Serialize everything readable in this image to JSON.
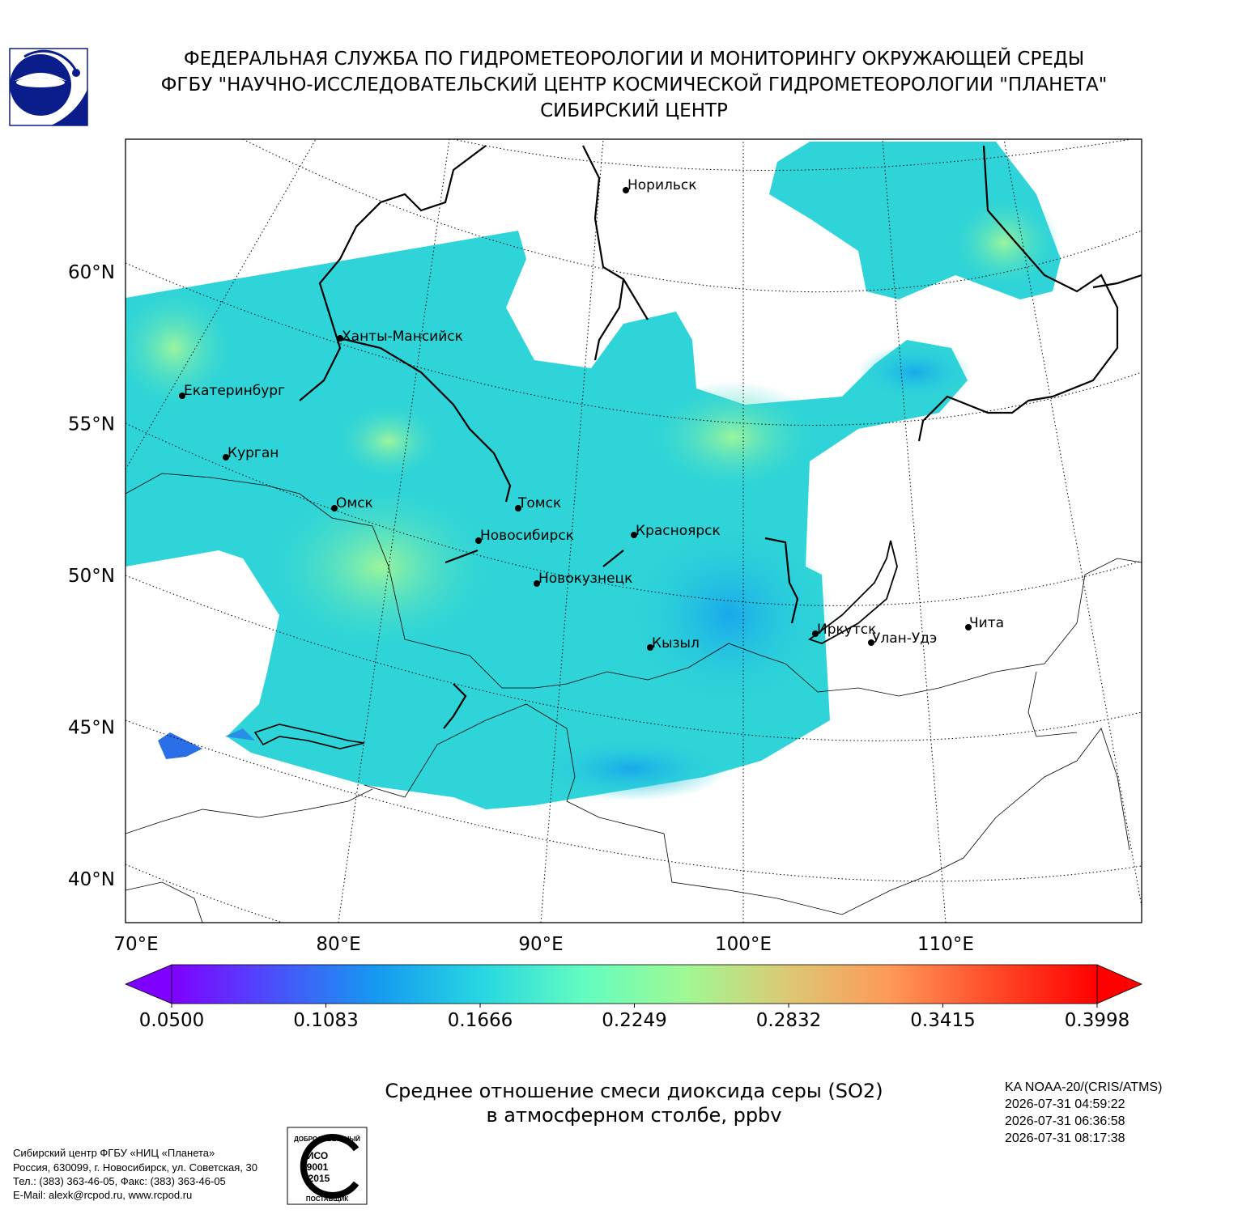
{
  "header": {
    "lines": [
      "ФЕДЕРАЛЬНАЯ СЛУЖБА ПО ГИДРОМЕТЕОРОЛОГИИ И МОНИТОРИНГУ ОКРУЖАЮЩЕЙ СРЕДЫ",
      "ФГБУ \"НАУЧНО-ИССЛЕДОВАТЕЛЬСКИЙ ЦЕНТР КОСМИЧЕСКОЙ ГИДРОМЕТЕОРОЛОГИИ \"ПЛАНЕТА\"",
      "СИБИРСКИЙ ЦЕНТР"
    ]
  },
  "map": {
    "latitude_labels": [
      {
        "value": 60,
        "label": "60°N"
      },
      {
        "value": 55,
        "label": "55°N"
      },
      {
        "value": 50,
        "label": "50°N"
      },
      {
        "value": 45,
        "label": "45°N"
      },
      {
        "value": 40,
        "label": "40°N"
      }
    ],
    "longitude_labels": [
      {
        "value": 70,
        "label": "70°E"
      },
      {
        "value": 80,
        "label": "80°E"
      },
      {
        "value": 90,
        "label": "90°E"
      },
      {
        "value": 100,
        "label": "100°E"
      },
      {
        "value": 110,
        "label": "110°E"
      }
    ],
    "cities": [
      "Норильск",
      "Ханты-Мансийск",
      "Екатеринбург",
      "Курган",
      "Омск",
      "Томск",
      "Новосибирск",
      "Красноярск",
      "Новокузнецк",
      "Кызыл",
      "Иркутск",
      "Улан-Удэ",
      "Чита"
    ]
  },
  "colorbar": {
    "min": 0.05,
    "max": 0.3998,
    "ticks": [
      {
        "value": 0.05,
        "label": "0.0500"
      },
      {
        "value": 0.1083,
        "label": "0.1083"
      },
      {
        "value": 0.1666,
        "label": "0.1666"
      },
      {
        "value": 0.2249,
        "label": "0.2249"
      },
      {
        "value": 0.2832,
        "label": "0.2832"
      },
      {
        "value": 0.3415,
        "label": "0.3415"
      },
      {
        "value": 0.3998,
        "label": "0.3998"
      }
    ],
    "colors": [
      "#8000ff",
      "#4a50fb",
      "#169af0",
      "#26d6e2",
      "#62fcc0",
      "#a0f894",
      "#dcc874",
      "#ff9858",
      "#ff4a28",
      "#ff0000"
    ]
  },
  "caption": {
    "lines": [
      "Среднее отношение смеси диоксида серы (SO2)",
      "в атмосферном столбе, ppbv"
    ]
  },
  "satellite_info": {
    "lines": [
      "KA NOAA-20/(CRIS/ATMS)",
      "2026-07-31 04:59:22",
      "2026-07-31 06:36:58",
      "2026-07-31 08:17:38"
    ]
  },
  "footer": {
    "address_lines": [
      "Сибирский центр ФГБУ «НИЦ «Планета»",
      "Россия, 630099, г. Новосибирск, ул. Советская, 30",
      "Тел.: (383) 363-46-05, Факс: (383) 363-46-05",
      "E-Mail: alexk@rcpod.ru, www.rcpod.ru"
    ]
  },
  "certificate": {
    "top": "ДОБРОСОВЕСТНЫЙ",
    "standard": [
      "ИСО",
      "9001",
      "-2015"
    ],
    "bottom": "ПОСТАВЩИК"
  }
}
